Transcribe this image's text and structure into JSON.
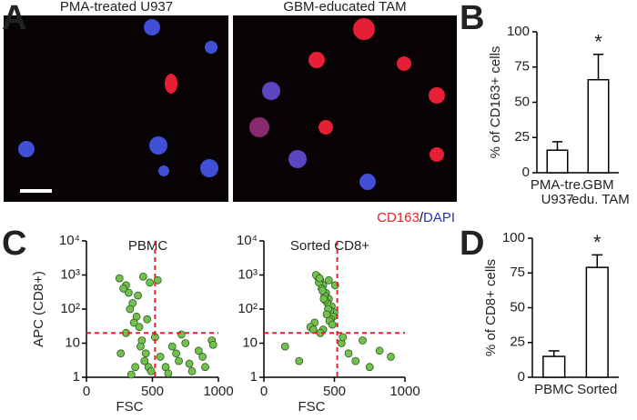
{
  "figure": {
    "panel_labels": [
      "A",
      "B",
      "C",
      "D"
    ],
    "images": [
      {
        "caption": "PMA-treated U937"
      },
      {
        "caption": "GBM-educated TAM"
      }
    ],
    "stain_legend": [
      {
        "text": "CD163",
        "color": "#e8202a"
      },
      {
        "text": "/",
        "color": "#000000"
      },
      {
        "text": "DAPI",
        "color": "#2a35b0"
      }
    ]
  },
  "chart_data": [
    {
      "type": "bar",
      "ylabel": "% of CD163+ cells",
      "categories": [
        "PMA-tre.\nU937",
        "GBM\n-edu. TAM"
      ],
      "values": [
        16,
        66
      ],
      "errors": [
        6,
        18
      ],
      "annotations": [
        "",
        "*"
      ],
      "color": "#ffffff",
      "ylim": [
        0,
        100
      ],
      "yticks": [
        0,
        25,
        50,
        75,
        100
      ]
    },
    {
      "type": "scatter",
      "title": "PBMC",
      "xlabel": "FSC",
      "ylabel": "APC (CD8+)",
      "color": "#72c04e",
      "log_y": true,
      "x": [
        250,
        300,
        320,
        350,
        380,
        400,
        420,
        450,
        470,
        490,
        280,
        330,
        360,
        410,
        440,
        480,
        300,
        370,
        430,
        460,
        260,
        340,
        390,
        520,
        560,
        600,
        650,
        700,
        750,
        800,
        850,
        900,
        950,
        620,
        680,
        720,
        780,
        880,
        960,
        540
      ],
      "y": [
        800,
        500,
        300,
        150,
        60,
        30,
        12,
        5,
        2,
        1.5,
        400,
        100,
        40,
        8,
        3,
        600,
        20,
        2,
        900,
        50,
        5,
        1.2,
        250,
        15,
        4,
        2,
        8,
        3,
        10,
        1.5,
        6,
        2,
        12,
        1.3,
        5,
        18,
        2.5,
        4,
        9,
        700
      ],
      "threshold_x": 520,
      "threshold_y": 20,
      "xlim": [
        0,
        1000
      ],
      "xticks": [
        0,
        500,
        1000
      ],
      "ylim": [
        1,
        10000
      ],
      "yticks": [
        1,
        10,
        {
          "value": 100,
          "label": "10²"
        },
        {
          "value": 1000,
          "label": "10³"
        },
        {
          "value": 10000,
          "label": "10⁴"
        }
      ]
    },
    {
      "type": "scatter",
      "title": "Sorted CD8+",
      "xlabel": "FSC",
      "color": "#72c04e",
      "log_y": true,
      "x": [
        380,
        400,
        420,
        440,
        460,
        480,
        500,
        390,
        410,
        430,
        450,
        470,
        490,
        360,
        370,
        395,
        415,
        435,
        455,
        475,
        330,
        350,
        420,
        445,
        465,
        485,
        505,
        400,
        425,
        460,
        150,
        250,
        550,
        600,
        650,
        700,
        750,
        820,
        900,
        560
      ],
      "y": [
        900,
        700,
        500,
        300,
        200,
        120,
        80,
        600,
        400,
        250,
        150,
        90,
        60,
        40,
        1000,
        800,
        350,
        180,
        100,
        50,
        30,
        25,
        25,
        70,
        45,
        35,
        500,
        20,
        200,
        700,
        8,
        3,
        10,
        5,
        3,
        12,
        2,
        6,
        4,
        15
      ],
      "threshold_x": 520,
      "threshold_y": 20,
      "xlim": [
        0,
        1000
      ],
      "xticks": [
        0,
        500,
        1000
      ],
      "ylim": [
        1,
        10000
      ],
      "yticks": [
        1,
        10,
        {
          "value": 100,
          "label": "10²"
        },
        {
          "value": 1000,
          "label": "10³"
        },
        {
          "value": 10000,
          "label": "10⁴"
        }
      ]
    },
    {
      "type": "bar",
      "ylabel": "% of CD8+ cells",
      "categories": [
        "PBMC",
        "Sorted"
      ],
      "values": [
        15,
        79
      ],
      "errors": [
        4,
        9
      ],
      "annotations": [
        "",
        "*"
      ],
      "color": "#ffffff",
      "ylim": [
        0,
        100
      ],
      "yticks": [
        0,
        25,
        50,
        75,
        100
      ]
    }
  ]
}
